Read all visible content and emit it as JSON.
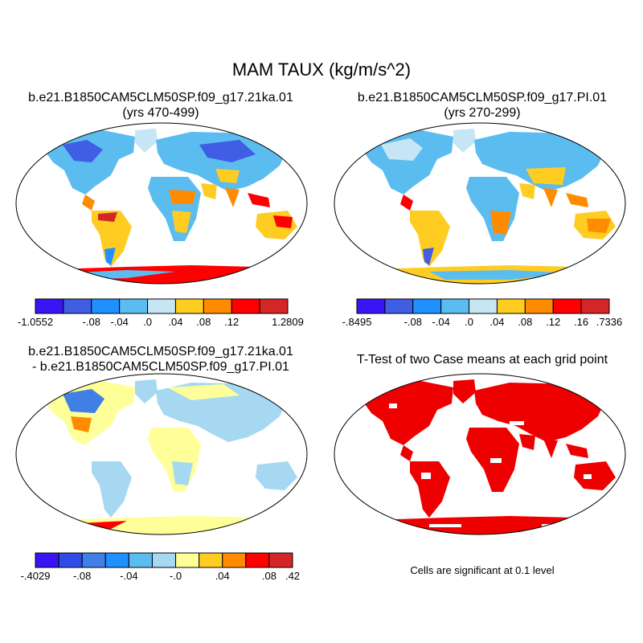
{
  "main_title": "MAM TAUX (kg/m/s^2)",
  "panels": [
    {
      "id": "case1",
      "title_lines": [
        "b.e21.B1850CAM5CLM50SP.f09_g17.21ka.01",
        "(yrs 470-499)"
      ]
    },
    {
      "id": "case2",
      "title_lines": [
        "b.e21.B1850CAM5CLM50SP.f09_g17.PI.01",
        "(yrs 270-299)"
      ]
    },
    {
      "id": "difference",
      "title_lines": [
        "b.e21.B1850CAM5CLM50SP.f09_g17.21ka.01",
        "- b.e21.B1850CAM5CLM50SP.f09_g17.PI.01"
      ]
    },
    {
      "id": "ttest",
      "title_lines": [
        "T-Test of two Case means at each grid point"
      ]
    }
  ],
  "colorbars": {
    "case1": {
      "colors": [
        "#3b14f5",
        "#3f5ee3",
        "#1e90ff",
        "#5bbcf0",
        "#c7e6f5",
        "#ffcc22",
        "#ff8c00",
        "#ff0000",
        "#d42626"
      ],
      "labels": [
        "-1.0552",
        "-.08",
        "-.04",
        ".0",
        ".04",
        ".08",
        ".12",
        "1.2809"
      ],
      "label_slots": [
        0,
        2,
        3,
        4,
        5,
        6,
        7,
        9
      ]
    },
    "case2": {
      "colors": [
        "#3b14f5",
        "#3f5ee3",
        "#1e90ff",
        "#5bbcf0",
        "#c7e6f5",
        "#ffcc22",
        "#ff8c00",
        "#ff0000",
        "#d42626"
      ],
      "labels": [
        "-.8495",
        "-.08",
        "-.04",
        ".0",
        ".04",
        ".08",
        ".12",
        ".16",
        ".7336"
      ],
      "label_slots": [
        0,
        2,
        3,
        4,
        5,
        6,
        7,
        8,
        9
      ]
    },
    "difference": {
      "colors": [
        "#3b14f5",
        "#2f4be8",
        "#3f7fe6",
        "#1e90ff",
        "#5bbcf0",
        "#a6d8f2",
        "#ffff99",
        "#ffcc22",
        "#ff8c00",
        "#ff0000",
        "#d42626"
      ],
      "labels": [
        "-.4029",
        "-.08",
        "-.04",
        "-.0",
        ".04",
        ".08",
        ".42"
      ],
      "label_slots": [
        0,
        2,
        4,
        6,
        8,
        10,
        11
      ]
    }
  },
  "significance_note": "Cells are significant at 0.1 level",
  "significance_color": "#ee0000"
}
